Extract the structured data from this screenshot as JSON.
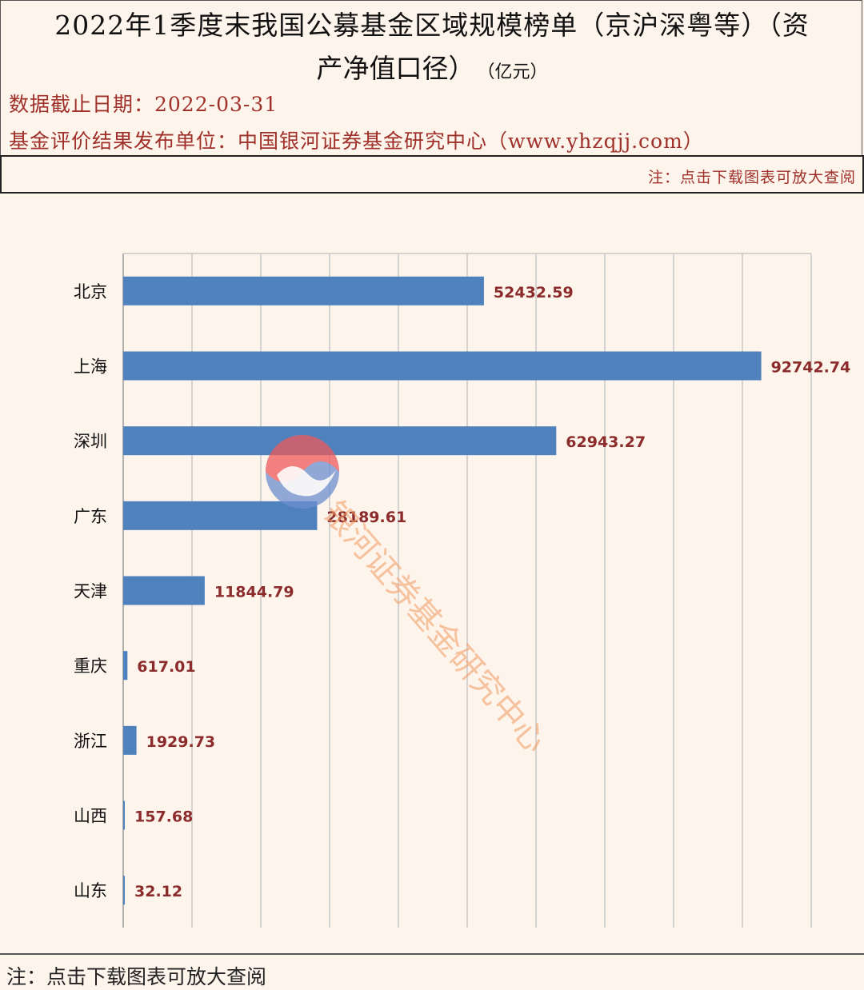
{
  "header": {
    "title_line1": "2022年1季度末我国公募基金区域规模榜单（京沪深粤等）（资",
    "title_line2": "产净值口径）",
    "title_unit": "（亿元）",
    "date_line": "数据截止日期：2022-03-31",
    "publisher_line": "基金评价结果发布单位：中国银河证券基金研究中心（www.yhzqjj.com）"
  },
  "note_bar": {
    "text": "注：点击下载图表可放大查阅"
  },
  "footer": {
    "text": "注：点击下载图表可放大查阅"
  },
  "watermark": {
    "text": "银河证券基金研究中心"
  },
  "colors": {
    "bar": "#4f81bd",
    "value_label": "#8b2b2b",
    "grid": "#c8c8c8",
    "background": "#fdf4ec"
  },
  "chart_data": {
    "type": "bar",
    "orientation": "horizontal",
    "categories": [
      "北京",
      "上海",
      "深圳",
      "广东",
      "天津",
      "重庆",
      "浙江",
      "山西",
      "山东"
    ],
    "values": [
      52432.59,
      92742.74,
      62943.27,
      28189.61,
      11844.79,
      617.01,
      1929.73,
      157.68,
      32.12
    ],
    "value_labels": [
      "52432.59",
      "92742.74",
      "62943.27",
      "28189.61",
      "11844.79",
      "617.01",
      "1929.73",
      "157.68",
      "32.12"
    ],
    "xlim": [
      0,
      100000
    ],
    "grid": true
  }
}
